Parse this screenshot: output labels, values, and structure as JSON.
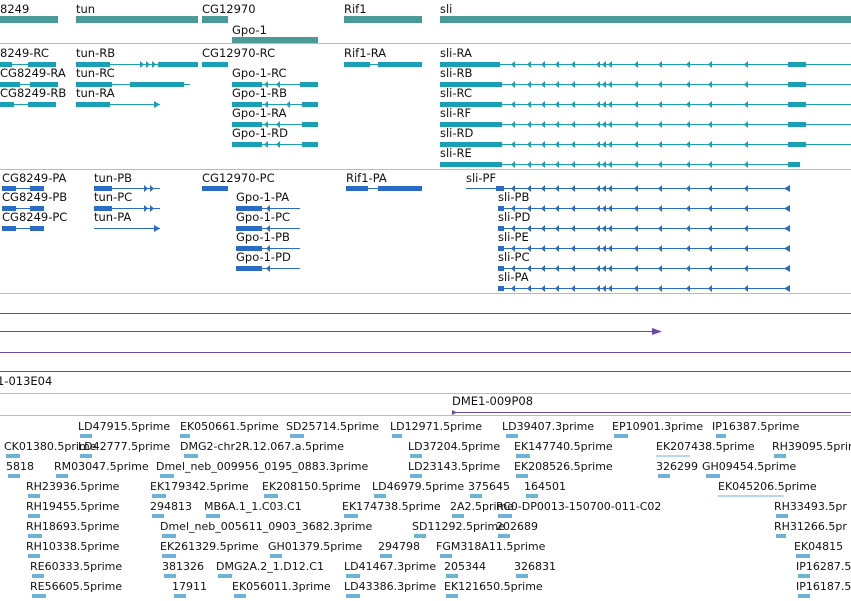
{
  "colors": {
    "gene": "#4a9a98",
    "tx_teal": "#1aa0b4",
    "tx_blue": "#2a6cc4",
    "est": "#6fb2d8",
    "region": "#6a4aa8",
    "divider": "#bbbbbb"
  },
  "genes": [
    {
      "label": "8249"
    },
    {
      "label": "tun"
    },
    {
      "label": "CG12970"
    },
    {
      "label": "Gpo-1"
    },
    {
      "label": "Rif1"
    },
    {
      "label": "sli"
    }
  ],
  "transcripts": [
    {
      "label": "8249-RC"
    },
    {
      "label": "CG8249-RA"
    },
    {
      "label": "CG8249-RB"
    },
    {
      "label": "tun-RB"
    },
    {
      "label": "tun-RC"
    },
    {
      "label": "tun-RA"
    },
    {
      "label": "CG12970-RC"
    },
    {
      "label": "Gpo-1-RC"
    },
    {
      "label": "Gpo-1-RB"
    },
    {
      "label": "Gpo-1-RA"
    },
    {
      "label": "Gpo-1-RD"
    },
    {
      "label": "Rif1-RA"
    },
    {
      "label": "sli-RA"
    },
    {
      "label": "sli-RB"
    },
    {
      "label": "sli-RC"
    },
    {
      "label": "sli-RF"
    },
    {
      "label": "sli-RD"
    },
    {
      "label": "sli-RE"
    }
  ],
  "proteins": [
    {
      "label": "CG8249-PA"
    },
    {
      "label": "CG8249-PB"
    },
    {
      "label": "CG8249-PC"
    },
    {
      "label": "tun-PB"
    },
    {
      "label": "tun-PC"
    },
    {
      "label": "tun-PA"
    },
    {
      "label": "CG12970-PC"
    },
    {
      "label": "Gpo-1-PA"
    },
    {
      "label": "Gpo-1-PC"
    },
    {
      "label": "Gpo-1-PB"
    },
    {
      "label": "Gpo-1-PD"
    },
    {
      "label": "Rif1-PA"
    },
    {
      "label": "sli-PF"
    },
    {
      "label": "sli-PB"
    },
    {
      "label": "sli-PD"
    },
    {
      "label": "sli-PE"
    },
    {
      "label": "sli-PC"
    },
    {
      "label": "sli-PA"
    }
  ],
  "clones": [
    {
      "label": "1-013E04"
    },
    {
      "label": "DME1-009P08"
    }
  ],
  "ests": [
    {
      "label": "LD47915.5prime"
    },
    {
      "label": "EK050661.5prime"
    },
    {
      "label": "SD25714.5prime"
    },
    {
      "label": "LD12971.5prime"
    },
    {
      "label": "LD39407.3prime"
    },
    {
      "label": "EP10901.3prime"
    },
    {
      "label": "IP16387.5prime"
    },
    {
      "label": "CK01380.5prime"
    },
    {
      "label": "LD42777.5prime"
    },
    {
      "label": "DMG2-chr2R.12.067.a.5prime"
    },
    {
      "label": "LD37204.5prime"
    },
    {
      "label": "EK147740.5prime"
    },
    {
      "label": "EK207438.5prime"
    },
    {
      "label": "RH39095.5prime"
    },
    {
      "label": "5818"
    },
    {
      "label": "RM03047.5prime"
    },
    {
      "label": "Dmel_neb_009956_0195_0883.3prime"
    },
    {
      "label": "LD23143.5prime"
    },
    {
      "label": "EK208526.5prime"
    },
    {
      "label": "326299"
    },
    {
      "label": "GH09454.5prime"
    },
    {
      "label": "RH23936.5prime"
    },
    {
      "label": "EK179342.5prime"
    },
    {
      "label": "EK208150.5prime"
    },
    {
      "label": "LD46979.5prime"
    },
    {
      "label": "375645"
    },
    {
      "label": "164501"
    },
    {
      "label": "EK045206.5prime"
    },
    {
      "label": "RH19455.5prime"
    },
    {
      "label": "294813"
    },
    {
      "label": "MB6A.1_1.C03.C1"
    },
    {
      "label": "EK174738.5prime"
    },
    {
      "label": "2A2.5prime"
    },
    {
      "label": "RC0-DP0013-150700-011-C02"
    },
    {
      "label": "RH33493.5pr"
    },
    {
      "label": "RH18693.5prime"
    },
    {
      "label": "Dmel_neb_005611_0903_3682.3prime"
    },
    {
      "label": "SD11292.5prime"
    },
    {
      "label": "202689"
    },
    {
      "label": "RH31266.5pr"
    },
    {
      "label": "RH10338.5prime"
    },
    {
      "label": "EK261329.5prime"
    },
    {
      "label": "GH01379.5prime"
    },
    {
      "label": "294798"
    },
    {
      "label": "FGM318A11.5prime"
    },
    {
      "label": "EK04815"
    },
    {
      "label": "RE60333.5prime"
    },
    {
      "label": "381326"
    },
    {
      "label": "DMG2A.2_1.D12.C1"
    },
    {
      "label": "LD41467.3prime"
    },
    {
      "label": "205344"
    },
    {
      "label": "326831"
    },
    {
      "label": "IP16287.5"
    },
    {
      "label": "RE56605.5prime"
    },
    {
      "label": "17911"
    },
    {
      "label": "EK056011.3prime"
    },
    {
      "label": "LD43386.3prime"
    },
    {
      "label": "EK121650.5prime"
    },
    {
      "label": "IP16187.5"
    }
  ]
}
